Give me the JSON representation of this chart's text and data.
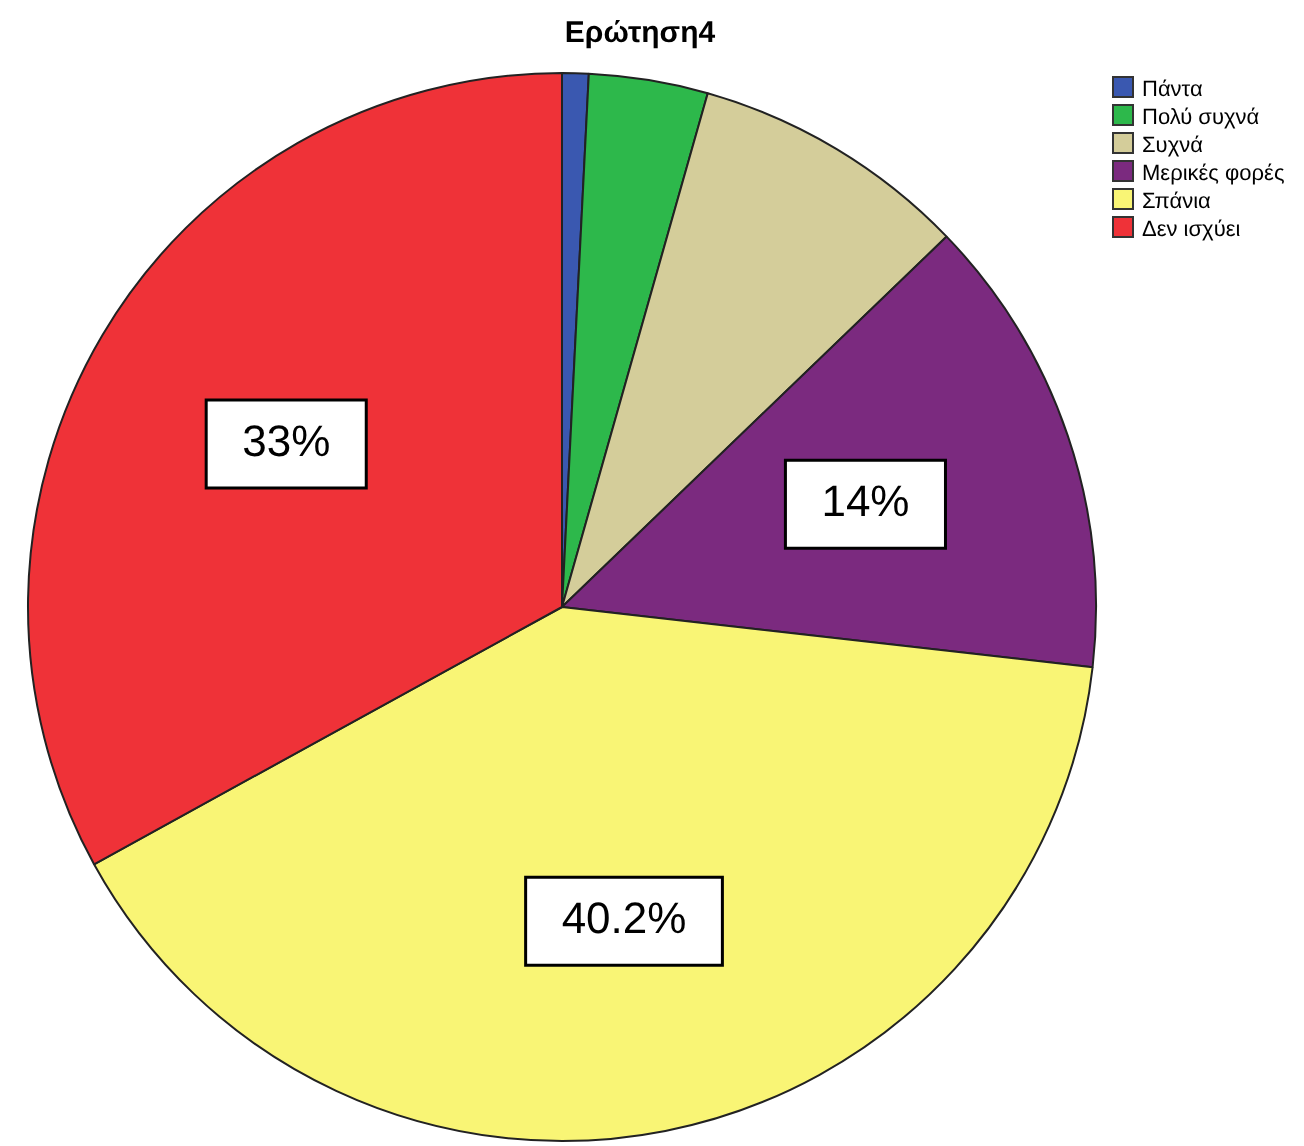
{
  "chart_data": {
    "type": "pie",
    "title": "Ερώτηση4",
    "categories": [
      "Πάντα",
      "Πολύ συχνά",
      "Συχνά",
      "Μερικές φορές",
      "Σπάνια",
      "Δεν ισχύει"
    ],
    "values": [
      0.8,
      3.6,
      8.4,
      14,
      40.2,
      33
    ],
    "colors": [
      "#3a58b0",
      "#2db84b",
      "#d4cd9a",
      "#7b2a7f",
      "#f9f575",
      "#ef3238"
    ],
    "value_labels": [
      null,
      null,
      null,
      "14%",
      "40.2%",
      "33%"
    ],
    "legend": "top right"
  }
}
